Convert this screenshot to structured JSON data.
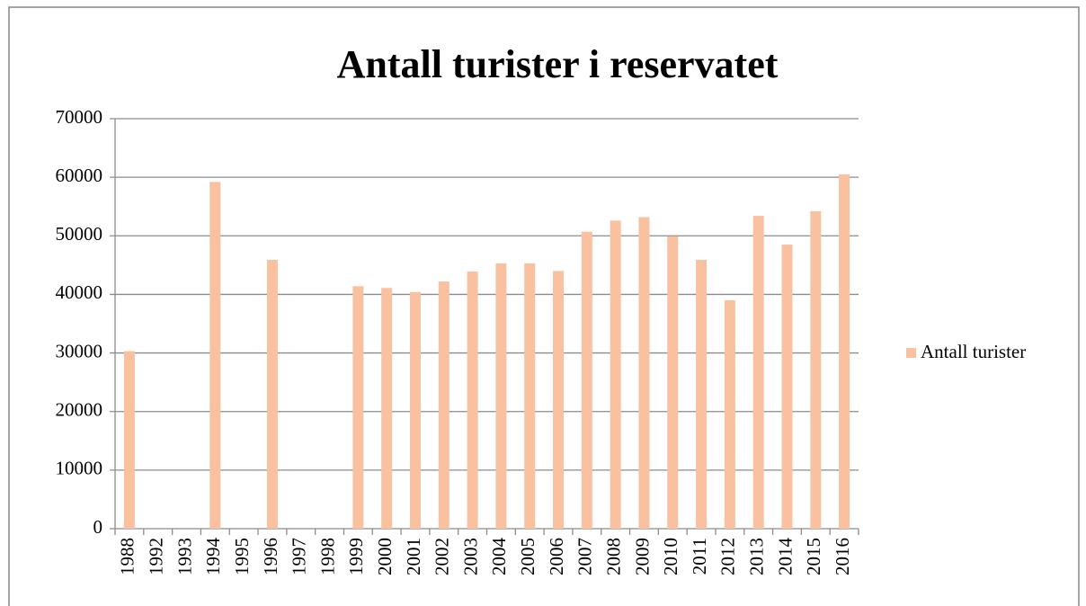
{
  "chart_data": {
    "type": "bar",
    "title": "Antall turister i reservatet",
    "categories": [
      "1988",
      "1992",
      "1993",
      "1994",
      "1995",
      "1996",
      "1997",
      "1998",
      "1999",
      "2000",
      "2001",
      "2002",
      "2003",
      "2004",
      "2005",
      "2006",
      "2007",
      "2008",
      "2009",
      "2010",
      "2011",
      "2012",
      "2013",
      "2014",
      "2015",
      "2016"
    ],
    "series": [
      {
        "name": "Antall turister",
        "color": "#fac1a0",
        "values": [
          30300,
          null,
          null,
          59200,
          null,
          45900,
          null,
          null,
          41400,
          41100,
          40400,
          42200,
          43900,
          45300,
          45300,
          44000,
          50700,
          52600,
          53200,
          49900,
          45900,
          39000,
          53400,
          48500,
          54200,
          60500
        ]
      }
    ],
    "ylim": [
      0,
      70000
    ],
    "yticks": [
      0,
      10000,
      20000,
      30000,
      40000,
      50000,
      60000,
      70000
    ],
    "grid": true,
    "legend": "right"
  }
}
